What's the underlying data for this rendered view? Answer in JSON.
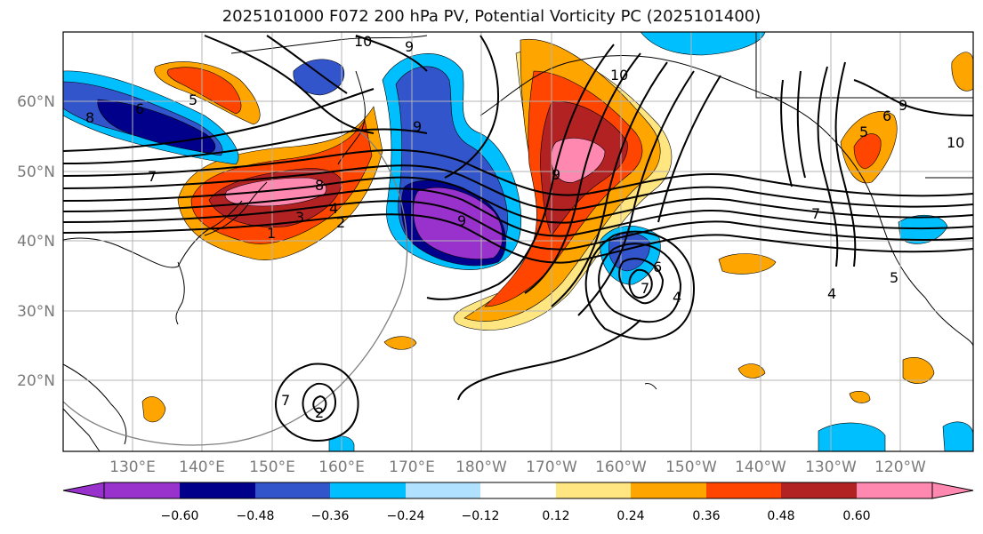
{
  "title": "2025101000 F072 200 hPa PV, Potential Vorticity PC (2025101400)",
  "map": {
    "lat_ticks": [
      "60°N",
      "50°N",
      "40°N",
      "30°N",
      "20°N"
    ],
    "lon_ticks": [
      "130°E",
      "140°E",
      "150°E",
      "160°E",
      "170°E",
      "180°W",
      "170°W",
      "160°W",
      "150°W",
      "140°W",
      "130°W",
      "120°W"
    ],
    "contour_labels": [
      "10",
      "9",
      "8",
      "6",
      "5",
      "7",
      "8",
      "3",
      "4",
      "2",
      "1",
      "9",
      "9",
      "10",
      "9",
      "6",
      "7",
      "4",
      "5",
      "6",
      "9",
      "10",
      "7",
      "4",
      "5",
      "7",
      "2"
    ]
  },
  "colorbar": {
    "ticks": [
      "−0.60",
      "−0.48",
      "−0.36",
      "−0.24",
      "−0.12",
      "0.12",
      "0.24",
      "0.36",
      "0.48",
      "0.60"
    ],
    "colors": [
      "#9932cc",
      "#00008b",
      "#3355cc",
      "#00bfff",
      "#b0e2ff",
      "#ffffff",
      "#ffe680",
      "#ffa500",
      "#ff4500",
      "#b22222",
      "#ff88b0",
      "#ff88b0"
    ],
    "under_color": "#9932cc",
    "over_color": "#ff88b0"
  }
}
